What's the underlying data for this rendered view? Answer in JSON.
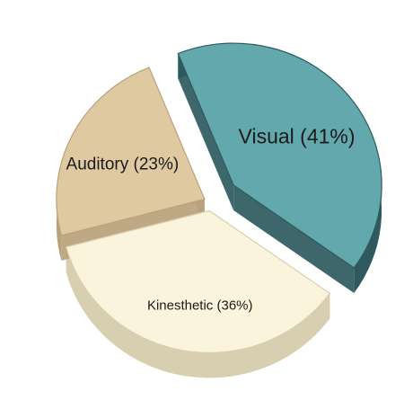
{
  "chart_data": {
    "type": "pie",
    "title": "",
    "style": "3d-exploded",
    "slices": [
      {
        "label": "Visual",
        "value": 41,
        "display": "Visual (41%)",
        "color_top": "#63a8ad",
        "color_side": "#2e5a5f"
      },
      {
        "label": "Kinesthetic",
        "value": 36,
        "display": "Kinesthetic (36%)",
        "color_top": "#fbf4dc",
        "color_side": "#d8ceb0"
      },
      {
        "label": "Auditory",
        "value": 23,
        "display": "Auditory (23%)",
        "color_top": "#dfc9a0",
        "color_side": "#b9a27a"
      }
    ]
  }
}
